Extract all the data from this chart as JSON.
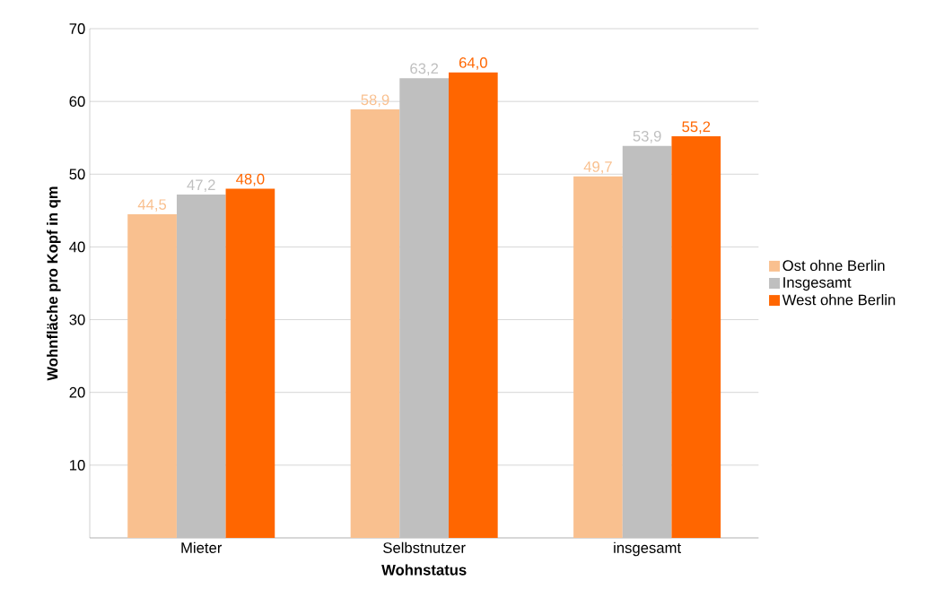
{
  "chart_data": {
    "type": "bar",
    "xlabel": "Wohnstatus",
    "ylabel": "Wohnfläche pro Kopf in qm",
    "categories": [
      "Mieter",
      "Selbstnutzer",
      "insgesamt"
    ],
    "series": [
      {
        "name": "Ost ohne Berlin",
        "color": "#f9c08f",
        "values": [
          44.5,
          58.9,
          49.7
        ],
        "value_labels": [
          "44,5",
          "58,9",
          "49,7"
        ]
      },
      {
        "name": "Insgesamt",
        "color": "#bfbfbf",
        "values": [
          47.2,
          63.2,
          53.9
        ],
        "value_labels": [
          "47,2",
          "63,2",
          "53,9"
        ]
      },
      {
        "name": "West ohne Berlin",
        "color": "#ff6600",
        "values": [
          48.0,
          64.0,
          55.2
        ],
        "value_labels": [
          "48,0",
          "64,0",
          "55,2"
        ]
      }
    ],
    "ylim": [
      0,
      70
    ],
    "yticks": [
      {
        "value": 0,
        "label": null
      },
      10,
      20,
      30,
      40,
      50,
      60,
      70
    ],
    "grid": "y",
    "legend": "right"
  }
}
